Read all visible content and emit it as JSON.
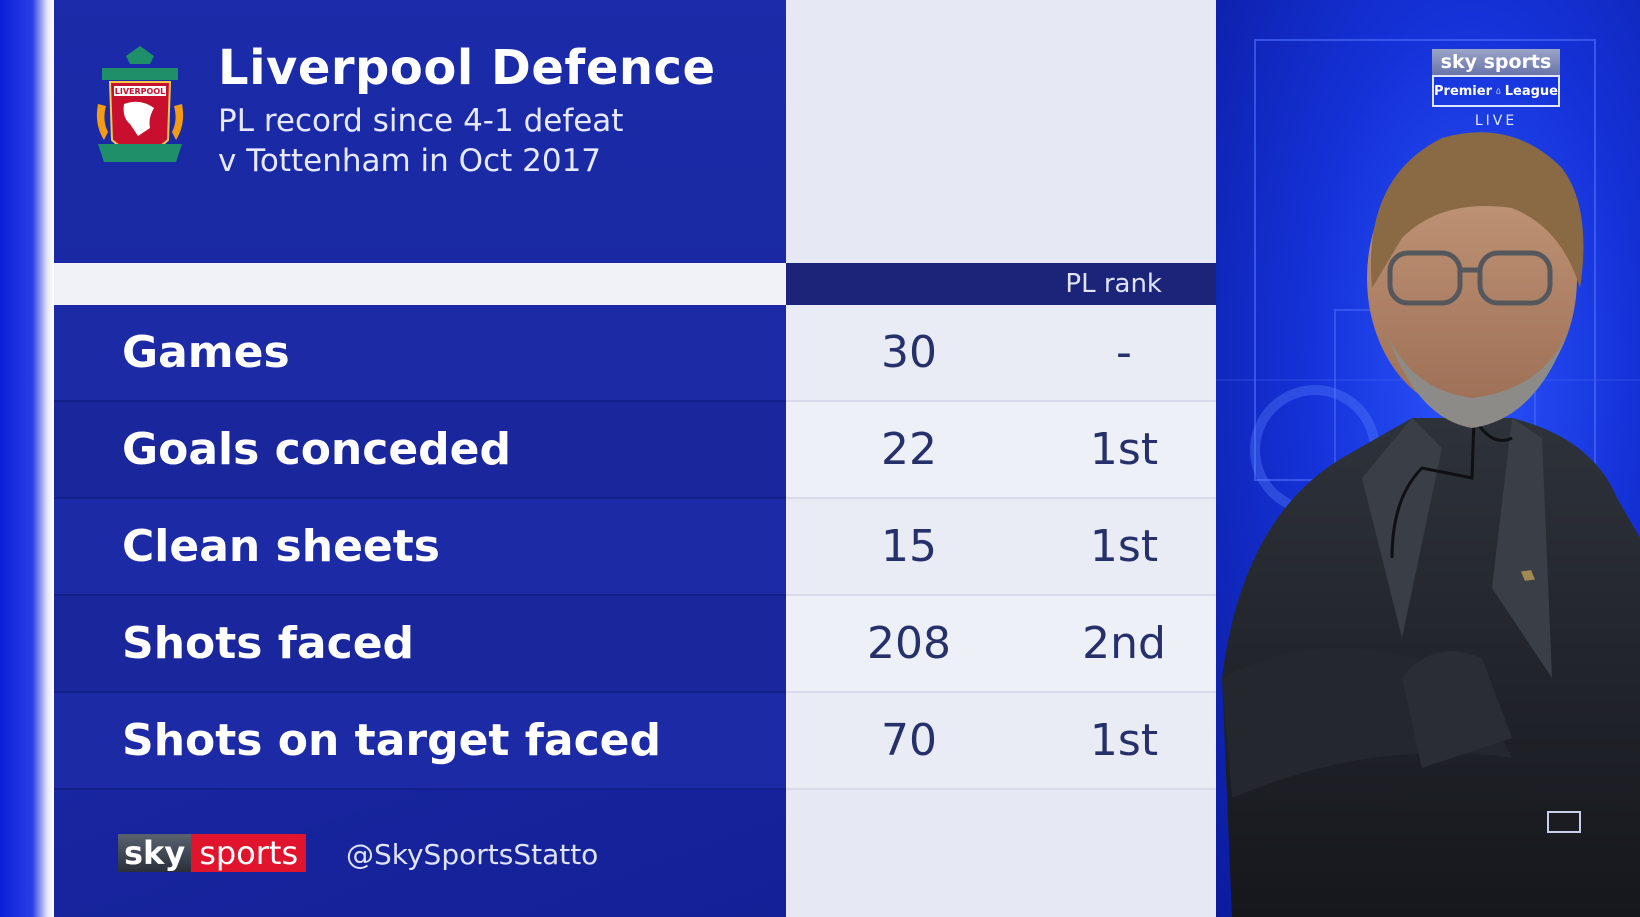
{
  "header": {
    "title": "Liverpool Defence",
    "subtitle_line1": "PL record since 4-1 defeat",
    "subtitle_line2": "v Tottenham in Oct 2017"
  },
  "crest": {
    "icon": "liverpool-crest-icon",
    "text": "LIVERPOOL"
  },
  "columns": {
    "rank_header": "PL rank"
  },
  "rows": [
    {
      "label": "Games",
      "value": "30",
      "rank": "-"
    },
    {
      "label": "Goals conceded",
      "value": "22",
      "rank": "1st"
    },
    {
      "label": "Clean sheets",
      "value": "15",
      "rank": "1st"
    },
    {
      "label": "Shots faced",
      "value": "208",
      "rank": "2nd"
    },
    {
      "label": "Shots on target faced",
      "value": "70",
      "rank": "1st"
    }
  ],
  "footer": {
    "logo_sky": "sky",
    "logo_sports": "sports",
    "handle": "@SkySportsStatto"
  },
  "broadcast_logo": {
    "top": "sky sports",
    "middle_left": "Premier",
    "middle_right": "League",
    "live": "LIVE"
  },
  "colors": {
    "panel_dark": "#1b2aa8",
    "panel_light": "#e9ecf5",
    "sky_red": "#e1142d",
    "background_blue": "#1532d8"
  }
}
